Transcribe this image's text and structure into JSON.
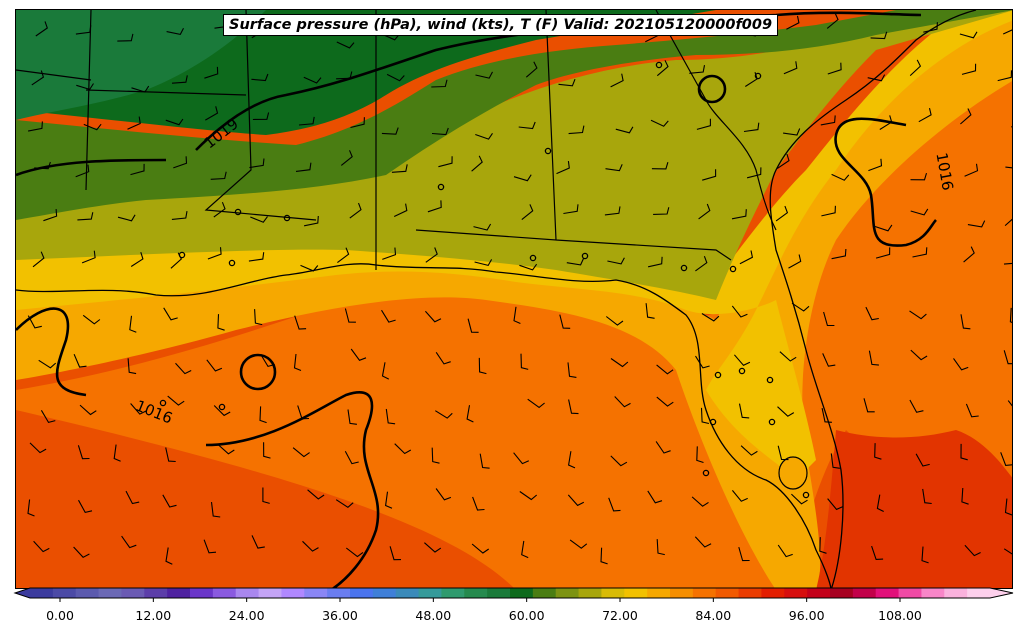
{
  "title": "Surface pressure (hPa), wind (kts), T (F) Valid: 202105120000f009",
  "isobar_labels": [
    "1019",
    "1016",
    "1016"
  ],
  "colorbar": {
    "tick_labels": [
      "0.00",
      "12.00",
      "24.00",
      "36.00",
      "48.00",
      "60.00",
      "72.00",
      "84.00",
      "96.00",
      "108.00"
    ],
    "tick_values": [
      0,
      12,
      24,
      36,
      48,
      60,
      72,
      84,
      96,
      108
    ],
    "min": -6,
    "max": 120,
    "step": 3,
    "colors": [
      "#3b3b9e",
      "#4b4aa6",
      "#5b5aae",
      "#6b69b5",
      "#6a5ab3",
      "#5c3ea9",
      "#4f22a0",
      "#6a36c9",
      "#8a5ae0",
      "#a987ee",
      "#c4a4f6",
      "#b088ff",
      "#8a86f5",
      "#6a7df0",
      "#4a74ee",
      "#3f7fd8",
      "#3a8aba",
      "#359a9a",
      "#2f9a6e",
      "#258a4e",
      "#1a7a3a",
      "#0d6a1c",
      "#4a7d12",
      "#7d9312",
      "#a8a60c",
      "#d8bb06",
      "#f2c100",
      "#f6a800",
      "#f58e00",
      "#f57200",
      "#f15a00",
      "#ea3c00",
      "#e31e00",
      "#d70e0e",
      "#c4001a",
      "#a70021",
      "#c2004a",
      "#e2107a",
      "#f04aa5",
      "#f886c8",
      "#fab2dd",
      "#fdd0ec"
    ]
  },
  "map_colors": {
    "dark_green": "#0d6a1c",
    "mid_green": "#1a7a3a",
    "olive_green": "#4a7d12",
    "yellow_green": "#7d9312",
    "olive": "#a8a60c",
    "yellow": "#f2c100",
    "light_orange": "#f6a800",
    "orange": "#f57200",
    "dark_orange": "#ea4f00",
    "red_orange": "#e23400"
  }
}
